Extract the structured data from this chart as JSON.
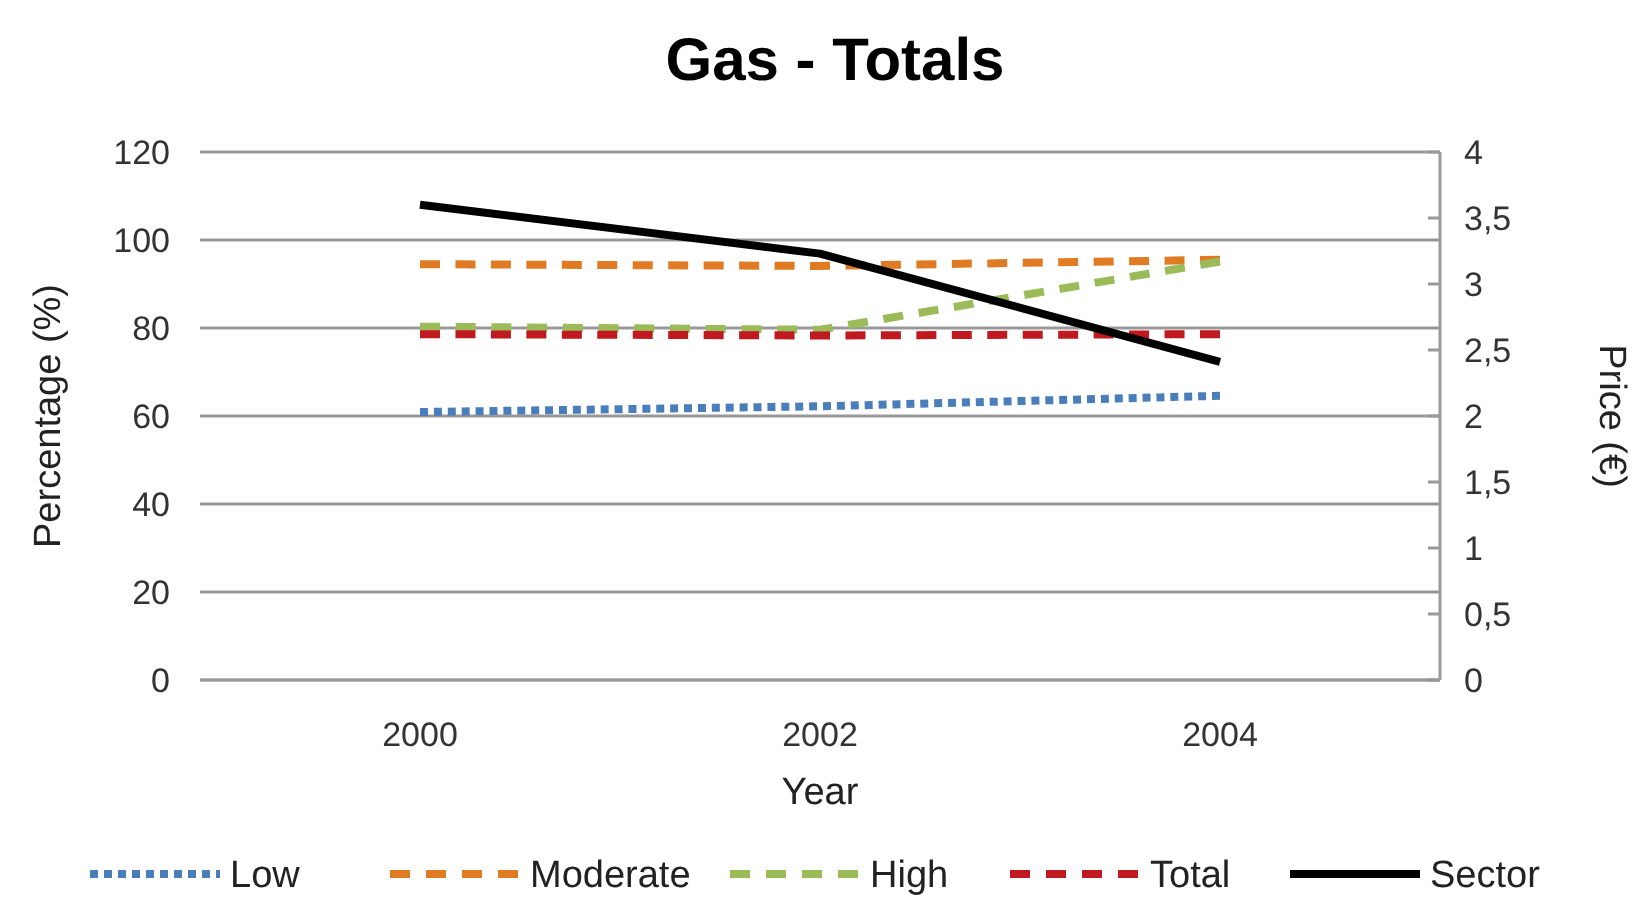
{
  "chart_data": {
    "type": "line",
    "title": "Gas - Totals",
    "xlabel": "Year",
    "ylabel": "Percentage (%)",
    "y2label": "Price (€)",
    "x": [
      2000,
      2002,
      2004
    ],
    "xlim": [
      1998.9,
      2005.1
    ],
    "xticks": [
      2000,
      2002,
      2004
    ],
    "ylim": [
      0,
      120
    ],
    "yticks": [
      0,
      20,
      40,
      60,
      80,
      100,
      120
    ],
    "y2lim": [
      0,
      4
    ],
    "y2ticks": [
      0,
      {
        "value": 0.5,
        "label": "0,5"
      },
      1,
      {
        "value": 1.5,
        "label": "1,5"
      },
      2,
      {
        "value": 2.5,
        "label": "2,5"
      },
      3,
      {
        "value": 3.5,
        "label": "3,5"
      },
      4
    ],
    "grid": "y",
    "legend": "bottom",
    "marker": "none",
    "series": [
      {
        "name": "Low",
        "color": "#4a7ebb",
        "values": [
          60.9,
          62.2,
          64.6
        ],
        "line_style": "dotted"
      },
      {
        "name": "Moderate",
        "color": "#e07b23",
        "values": [
          94.5,
          94.1,
          95.5
        ],
        "line_style": "dashed"
      },
      {
        "name": "High",
        "color": "#9bbb59",
        "values": [
          80.3,
          79.6,
          95.1
        ],
        "line_style": "dashed"
      },
      {
        "name": "Total",
        "color": "#c0191f",
        "values": [
          78.6,
          78.3,
          78.6
        ],
        "line_style": "dashed"
      },
      {
        "name": "Sector",
        "color": "#000000",
        "values": [
          3.6,
          3.23,
          2.41
        ],
        "line_style": "solid",
        "axis": "y2"
      }
    ]
  }
}
